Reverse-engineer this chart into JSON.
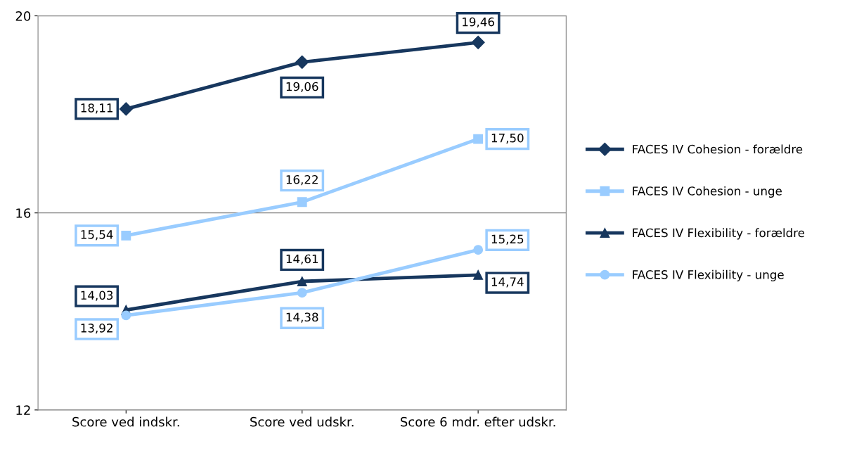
{
  "chart_data": {
    "type": "line",
    "categories": [
      "Score ved indskr.",
      "Score ved udskr.",
      "Score 6 mdr. efter udskr."
    ],
    "series": [
      {
        "name": "FACES IV Cohesion - forældre",
        "color": "#17375e",
        "marker": "diamond",
        "values": [
          18.11,
          19.06,
          19.46
        ],
        "value_labels": [
          "18,11",
          "19,06",
          "19,46"
        ]
      },
      {
        "name": "FACES IV Cohesion - unge",
        "color": "#99ccff",
        "marker": "square",
        "values": [
          15.54,
          16.22,
          17.5
        ],
        "value_labels": [
          "15,54",
          "16,22",
          "17,50"
        ]
      },
      {
        "name": "FACES IV Flexibility - forældre",
        "color": "#17375e",
        "marker": "triangle",
        "values": [
          14.03,
          14.61,
          14.74
        ],
        "value_labels": [
          "14,03",
          "14,61",
          "14,74"
        ]
      },
      {
        "name": "FACES IV Flexibility - unge",
        "color": "#99ccff",
        "marker": "circle",
        "values": [
          13.92,
          14.38,
          15.25
        ],
        "value_labels": [
          "13,92",
          "14,38",
          "15,25"
        ]
      }
    ],
    "ylim": [
      12,
      20
    ],
    "yticks": [
      12,
      16,
      20
    ],
    "grid": "y",
    "legend": "right"
  }
}
